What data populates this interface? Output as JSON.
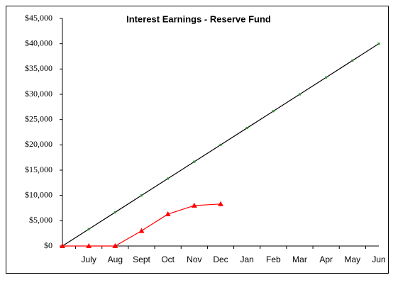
{
  "chart_data": {
    "type": "line",
    "title": "Interest Earnings - Reserve Fund",
    "categories": [
      null,
      "July",
      "Aug",
      "Sept",
      "Oct",
      "Nov",
      "Dec",
      "Jan",
      "Feb",
      "Mar",
      "Apr",
      "May",
      "Jun"
    ],
    "series": [
      {
        "color": "#000000",
        "marker_color": "#2e8b2e",
        "marker": "dot",
        "values": [
          0,
          3333,
          6667,
          10000,
          13333,
          16667,
          20000,
          23333,
          26667,
          30000,
          33333,
          36667,
          40000
        ]
      },
      {
        "color": "#ff0000",
        "marker_color": "#ff0000",
        "marker": "triangle",
        "values": [
          0,
          0,
          0,
          3000,
          6300,
          8000,
          8300,
          null,
          null,
          null,
          null,
          null,
          null
        ]
      }
    ],
    "ylim": [
      0,
      45000
    ],
    "yticks": [
      {
        "value": 0,
        "label": "$0"
      },
      {
        "value": 5000,
        "label": "$5,000"
      },
      {
        "value": 10000,
        "label": "$10,000"
      },
      {
        "value": 15000,
        "label": "$15,000"
      },
      {
        "value": 20000,
        "label": "$20,000"
      },
      {
        "value": 25000,
        "label": "$25,000"
      },
      {
        "value": 30000,
        "label": "$30,000"
      },
      {
        "value": 35000,
        "label": "$35,000"
      },
      {
        "value": 40000,
        "label": "$40,000"
      },
      {
        "value": 45000,
        "label": "$45,000"
      }
    ],
    "grid": false
  }
}
